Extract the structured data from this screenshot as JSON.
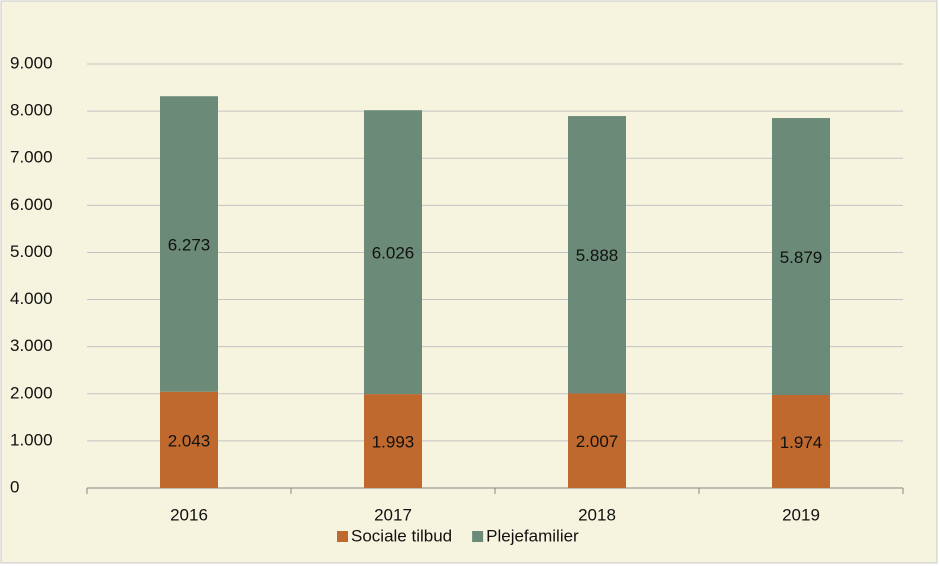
{
  "chart_data": {
    "type": "stacked_bar",
    "categories": [
      "2016",
      "2017",
      "2018",
      "2019"
    ],
    "series": [
      {
        "name": "Sociale tilbud",
        "color": "#c0692e",
        "values": [
          2043,
          1993,
          2007,
          1974
        ],
        "value_labels": [
          "2.043",
          "1.993",
          "2.007",
          "1.974"
        ]
      },
      {
        "name": "Plejefamilier",
        "color": "#6b8a78",
        "values": [
          6273,
          6026,
          5888,
          5879
        ],
        "value_labels": [
          "6.273",
          "6.026",
          "5.888",
          "5.879"
        ]
      }
    ],
    "ylim": [
      0,
      9000
    ],
    "yticks": [
      0,
      {
        "value": 1000,
        "label": "1.000"
      },
      {
        "value": 2000,
        "label": "2.000"
      },
      {
        "value": 3000,
        "label": "3.000"
      },
      {
        "value": 4000,
        "label": "4.000"
      },
      {
        "value": 5000,
        "label": "5.000"
      },
      {
        "value": 6000,
        "label": "6.000"
      },
      {
        "value": 7000,
        "label": "7.000"
      },
      {
        "value": 8000,
        "label": "8.000"
      },
      {
        "value": 9000,
        "label": "9.000"
      }
    ],
    "grid": true,
    "legend": "bottom"
  }
}
